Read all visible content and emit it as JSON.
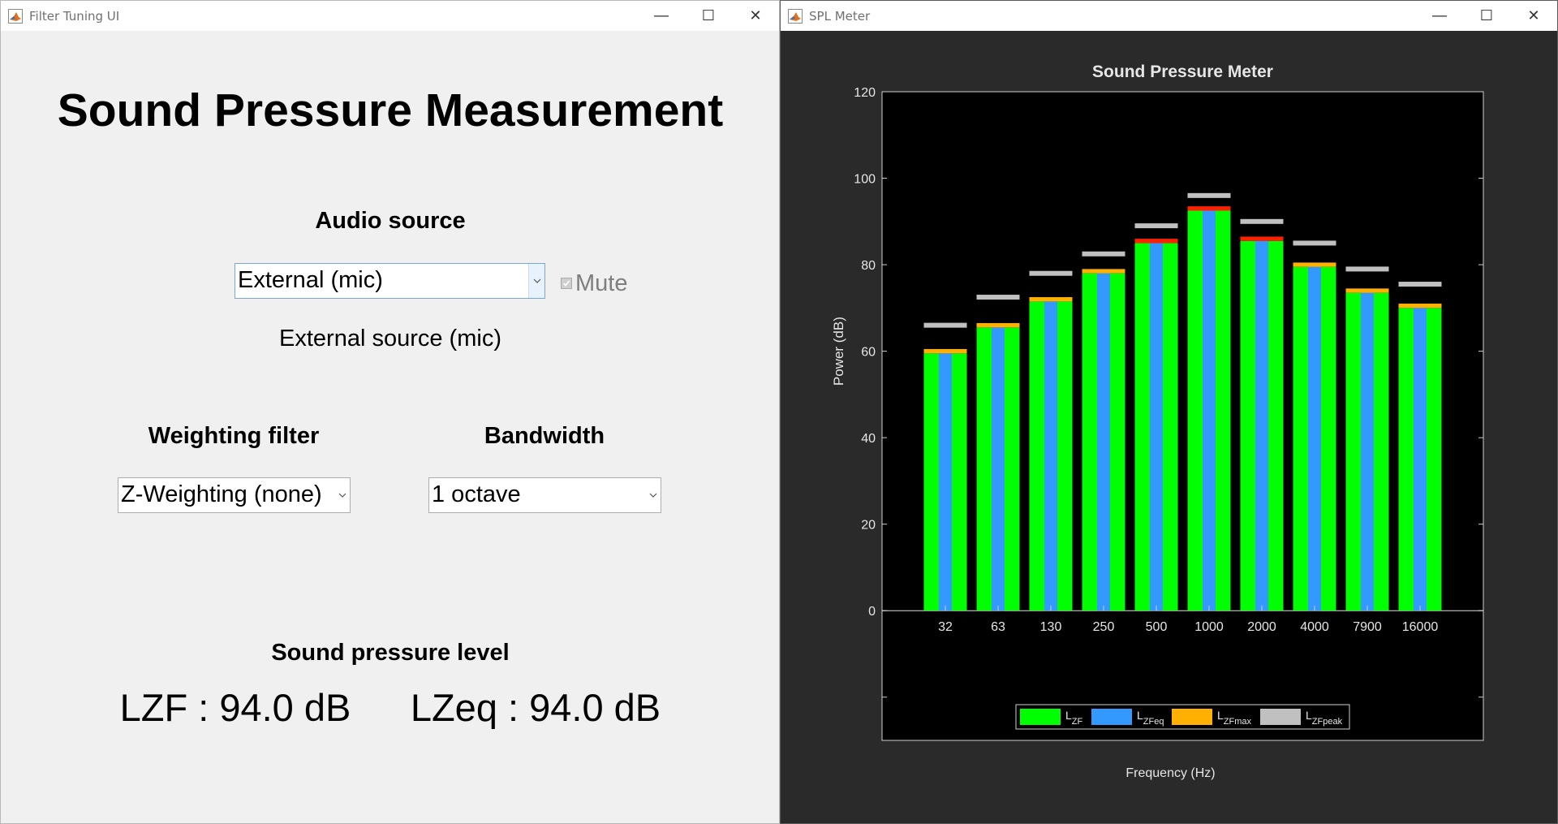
{
  "left_window": {
    "title": "Filter Tuning UI",
    "heading": "Sound Pressure Measurement",
    "audio_source": {
      "label": "Audio source",
      "selected": "External (mic)",
      "mute_label": "Mute",
      "mute_checked": true,
      "mute_enabled": false,
      "status": "External source (mic)"
    },
    "weighting": {
      "label": "Weighting filter",
      "selected": "Z-Weighting (none)"
    },
    "bandwidth": {
      "label": "Bandwidth",
      "selected": "1 octave"
    },
    "spl": {
      "label": "Sound pressure level",
      "lzf": "LZF : 94.0 dB",
      "lzeq": "LZeq : 94.0 dB"
    }
  },
  "right_window": {
    "title": "SPL Meter"
  },
  "colors": {
    "lzf": "#00ff00",
    "lzeq": "#3399ff",
    "lzfmax": "#ffb000",
    "lzfpeak": "#c0c0c0",
    "over": "#ff2000"
  },
  "chart_data": {
    "type": "bar",
    "title": "Sound Pressure Meter",
    "xlabel": "Frequency (Hz)",
    "ylabel": "Power (dB)",
    "ylim": [
      -30,
      120
    ],
    "yticks": [
      0,
      20,
      40,
      60,
      80,
      100,
      120
    ],
    "grid": false,
    "legend_position": "bottom",
    "categories": [
      "32",
      "63",
      "130",
      "250",
      "500",
      "1000",
      "2000",
      "4000",
      "7900",
      "16000"
    ],
    "series": [
      {
        "name": "L_ZF",
        "label_main": "L",
        "label_sub": "ZF",
        "values": [
          59.5,
          65.5,
          71.5,
          78,
          85,
          92.5,
          85.5,
          79.5,
          73.5,
          70
        ]
      },
      {
        "name": "L_ZFeq",
        "label_main": "L",
        "label_sub": "ZFeq",
        "values": [
          59.5,
          65.5,
          71.5,
          78,
          85,
          92.5,
          85.5,
          79.5,
          73.5,
          70
        ]
      },
      {
        "name": "L_ZFmax",
        "label_main": "L",
        "label_sub": "ZFmax",
        "values": [
          60.5,
          66.5,
          72.5,
          79,
          86,
          93.5,
          86.5,
          80.5,
          74.5,
          71
        ]
      },
      {
        "name": "L_ZFpeak",
        "label_main": "L",
        "label_sub": "ZFpeak",
        "values": [
          66,
          72.5,
          78,
          82.5,
          89,
          96,
          90,
          85,
          79,
          75.5
        ]
      }
    ]
  }
}
